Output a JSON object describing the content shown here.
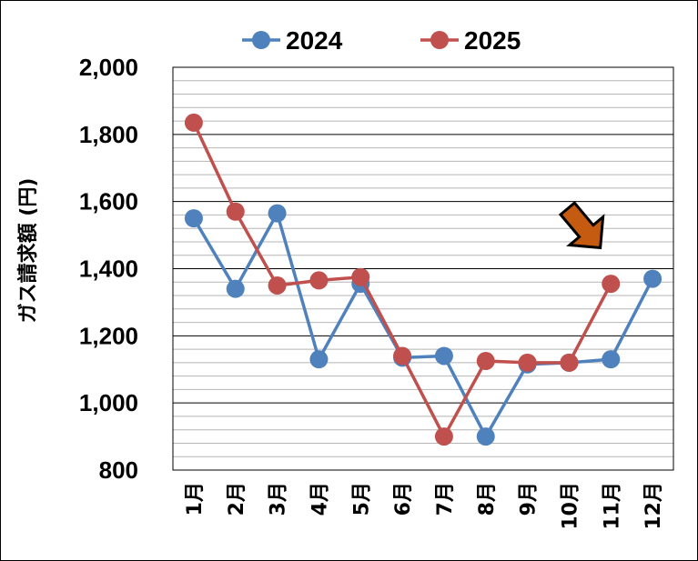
{
  "chart_data": {
    "type": "line",
    "categories": [
      "1月",
      "2月",
      "3月",
      "4月",
      "5月",
      "6月",
      "7月",
      "8月",
      "9月",
      "10月",
      "11月",
      "12月"
    ],
    "series": [
      {
        "name": "2024",
        "color": "#4F81BD",
        "values": [
          1550,
          1340,
          1565,
          1130,
          1355,
          1135,
          1140,
          900,
          1115,
          1120,
          1130,
          1370
        ]
      },
      {
        "name": "2025",
        "color": "#C0504D",
        "values": [
          1835,
          1570,
          1350,
          1365,
          1375,
          1140,
          900,
          1125,
          1120,
          1120,
          1355,
          null
        ]
      }
    ],
    "ylabel": "ガス請求額 (円)",
    "ylim": [
      800,
      2000
    ],
    "yticks": [
      800,
      1000,
      1200,
      1400,
      1600,
      1800,
      2000
    ],
    "ytick_labels": [
      "800",
      "1,000",
      "1,200",
      "1,400",
      "1,600",
      "1,800",
      "2,000"
    ],
    "grid": true,
    "legend_position": "top-center",
    "annotation": {
      "type": "arrow",
      "color": "#C55A11",
      "points_to": "11月 2025"
    }
  }
}
